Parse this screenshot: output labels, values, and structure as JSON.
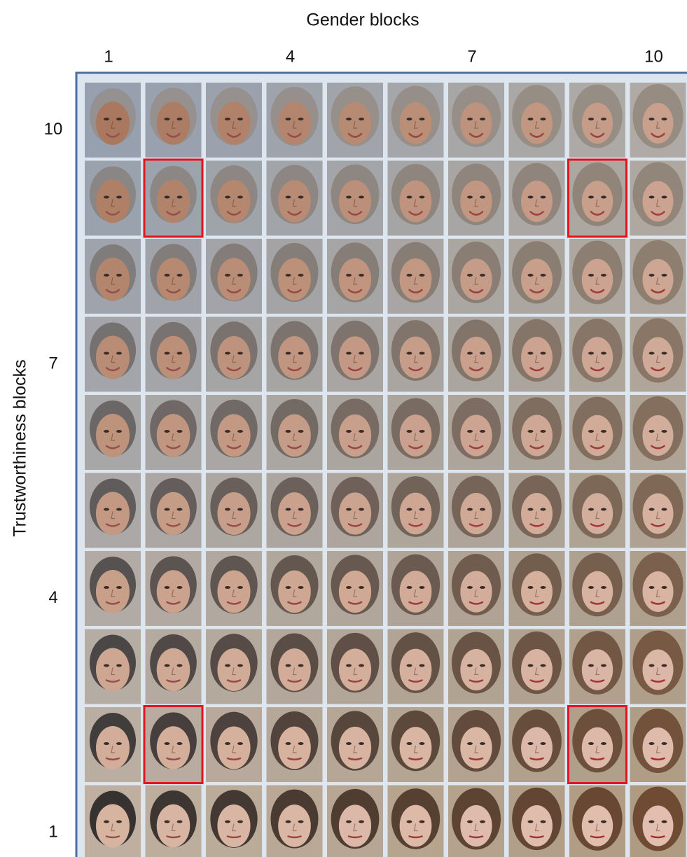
{
  "header": {
    "title": "Gender blocks"
  },
  "columns": [
    1,
    4,
    7,
    10
  ],
  "rows": [
    10,
    7,
    4,
    1
  ],
  "y_label": "Trustworthiness blocks"
}
